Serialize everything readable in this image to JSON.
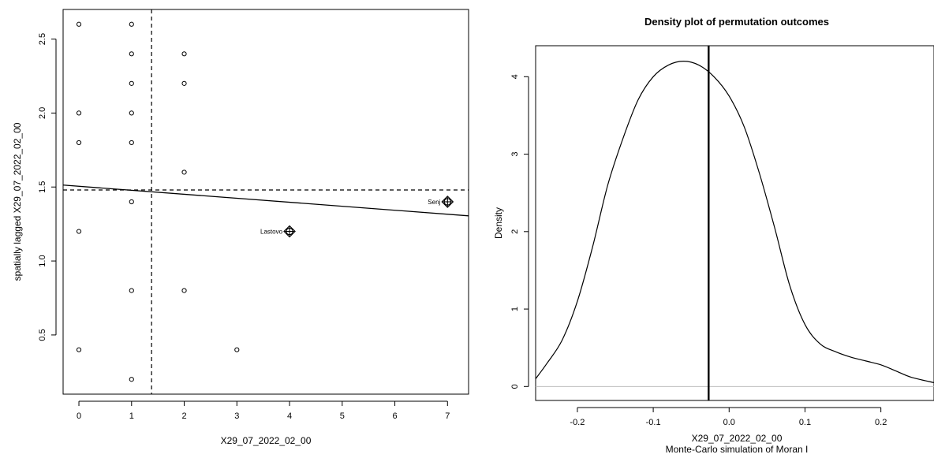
{
  "chart_data": [
    {
      "type": "scatter",
      "title": "",
      "xlabel": "X29_07_2022_02_00",
      "ylabel": "spatially lagged X29_07_2022_02_00",
      "xlim": [
        -0.3,
        7.4
      ],
      "ylim": [
        0.1,
        2.7
      ],
      "x_ticks": [
        "0",
        "1",
        "2",
        "3",
        "4",
        "5",
        "6",
        "7"
      ],
      "y_ticks": [
        "0.5",
        "1.0",
        "1.5",
        "2.0",
        "2.5"
      ],
      "points": [
        {
          "x": 0,
          "y": 2.6
        },
        {
          "x": 0,
          "y": 2.0
        },
        {
          "x": 0,
          "y": 1.8
        },
        {
          "x": 0,
          "y": 1.2
        },
        {
          "x": 0,
          "y": 0.4
        },
        {
          "x": 1,
          "y": 2.6
        },
        {
          "x": 1,
          "y": 2.4
        },
        {
          "x": 1,
          "y": 2.2
        },
        {
          "x": 1,
          "y": 2.0
        },
        {
          "x": 1,
          "y": 1.8
        },
        {
          "x": 1,
          "y": 1.4
        },
        {
          "x": 1,
          "y": 0.8
        },
        {
          "x": 1,
          "y": 0.2
        },
        {
          "x": 2,
          "y": 2.4
        },
        {
          "x": 2,
          "y": 2.2
        },
        {
          "x": 2,
          "y": 1.6
        },
        {
          "x": 2,
          "y": 0.8
        },
        {
          "x": 3,
          "y": 0.4
        }
      ],
      "influential_points": [
        {
          "label": "Lastovo",
          "x": 4,
          "y": 1.2
        },
        {
          "label": "Senj",
          "x": 7,
          "y": 1.4
        }
      ],
      "mean_x": 1.38,
      "mean_y": 1.48,
      "regression": {
        "intercept": 1.505,
        "slope": -0.027
      },
      "grid": false
    },
    {
      "type": "line",
      "title": "Density plot of permutation outcomes",
      "xlabel": "X29_07_2022_02_00",
      "xlabel2": "Monte-Carlo simulation of Moran I",
      "ylabel": "Density",
      "xlim": [
        -0.255,
        0.27
      ],
      "ylim": [
        -0.18,
        4.4
      ],
      "x_ticks": [
        "-0.2",
        "-0.1",
        "0.0",
        "0.1",
        "0.2"
      ],
      "y_ticks": [
        "0",
        "1",
        "2",
        "3",
        "4"
      ],
      "density": {
        "x": [
          -0.255,
          -0.24,
          -0.22,
          -0.2,
          -0.18,
          -0.16,
          -0.14,
          -0.12,
          -0.1,
          -0.08,
          -0.06,
          -0.04,
          -0.02,
          0.0,
          0.02,
          0.04,
          0.06,
          0.08,
          0.1,
          0.12,
          0.14,
          0.16,
          0.18,
          0.2,
          0.22,
          0.24,
          0.27
        ],
        "y": [
          0.1,
          0.3,
          0.6,
          1.1,
          1.8,
          2.6,
          3.2,
          3.7,
          4.0,
          4.15,
          4.2,
          4.15,
          4.0,
          3.75,
          3.35,
          2.75,
          2.05,
          1.3,
          0.8,
          0.55,
          0.45,
          0.38,
          0.33,
          0.28,
          0.2,
          0.12,
          0.05
        ]
      },
      "observed_value": -0.027,
      "baseline": 0,
      "grid": false
    }
  ]
}
